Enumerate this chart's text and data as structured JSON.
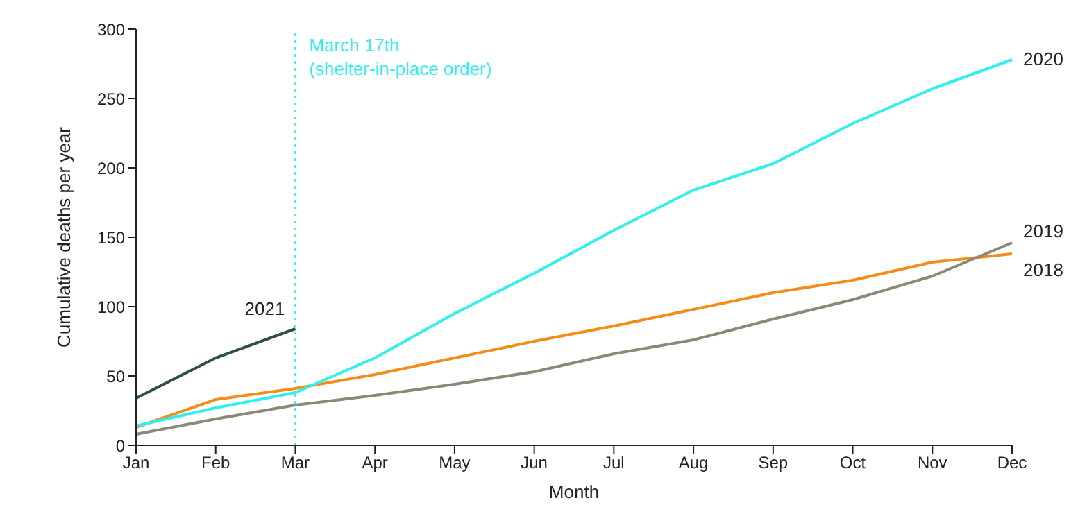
{
  "chart_data": {
    "type": "line",
    "xlabel": "Month",
    "ylabel": "Cumulative deaths per year",
    "categories": [
      "Jan",
      "Feb",
      "Mar",
      "Apr",
      "May",
      "Jun",
      "Jul",
      "Aug",
      "Sep",
      "Oct",
      "Nov",
      "Dec"
    ],
    "series": [
      {
        "name": "2018",
        "color": "#f28c1a",
        "values": [
          13,
          33,
          41,
          51,
          63,
          75,
          86,
          98,
          110,
          119,
          132,
          138
        ]
      },
      {
        "name": "2019",
        "color": "#8c8877",
        "values": [
          8,
          19,
          29,
          36,
          44,
          53,
          66,
          76,
          91,
          105,
          122,
          146
        ]
      },
      {
        "name": "2020",
        "color": "#33eeee",
        "values": [
          14,
          27,
          38,
          63,
          95,
          124,
          155,
          184,
          203,
          232,
          257,
          278
        ]
      },
      {
        "name": "2021",
        "color": "#2f4f4f",
        "values": [
          34,
          63,
          84,
          null,
          null,
          null,
          null,
          null,
          null,
          null,
          null,
          null
        ]
      }
    ],
    "ylim": [
      0,
      300
    ],
    "yticks": [
      0,
      50,
      100,
      150,
      200,
      250,
      300
    ],
    "grid": false,
    "legend": false,
    "marker": "none",
    "line_style": "solid",
    "ref_lines": [
      {
        "axis": "x",
        "value": "Mar",
        "label": "March 17th\n(shelter-in-place order)",
        "color": "#33eeee",
        "line_style": "dotted"
      }
    ]
  }
}
